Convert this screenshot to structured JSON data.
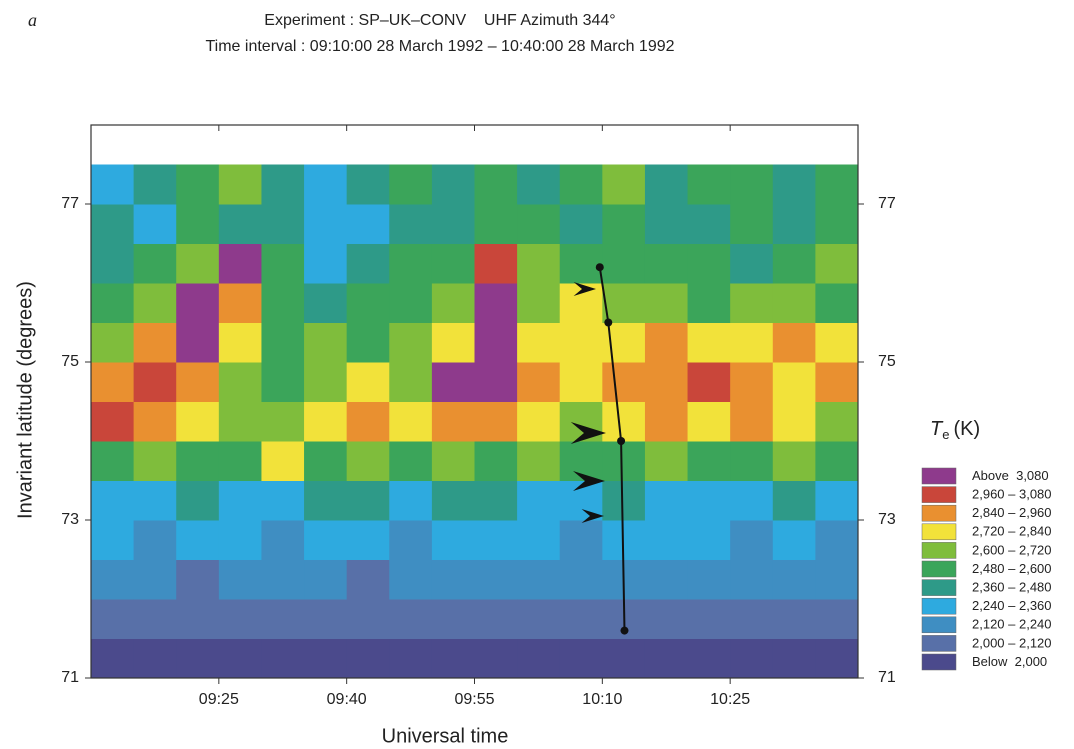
{
  "chart_data": {
    "type": "heatmap",
    "panel_label": "a",
    "title": "Experiment : SP–UK–CONV    UHF Azimuth 344°",
    "subtitle": "Time interval : 09:10:00 28 March 1992 – 10:40:00 28 March 1992",
    "x_label": "Universal time",
    "y_label": "Invariant latitude (degrees)",
    "xlim": [
      550,
      640
    ],
    "ylim": [
      71,
      78
    ],
    "xticks": [
      {
        "value": 565,
        "label": "09:25"
      },
      {
        "value": 580,
        "label": "09:40"
      },
      {
        "value": 595,
        "label": "09:55"
      },
      {
        "value": 610,
        "label": "10:10"
      },
      {
        "value": 625,
        "label": "10:25"
      }
    ],
    "yticks": [
      71,
      73,
      75,
      77
    ],
    "x": [
      552.5,
      557.5,
      562.5,
      567.5,
      572.5,
      577.5,
      582.5,
      587.5,
      592.5,
      597.5,
      602.5,
      607.5,
      612.5,
      617.5,
      622.5,
      627.5,
      632.5,
      637.5
    ],
    "y": [
      71.25,
      71.75,
      72.25,
      72.75,
      73.25,
      73.75,
      74.25,
      74.75,
      75.25,
      75.75,
      76.25,
      76.75,
      77.25
    ],
    "z": [
      [
        1940,
        1940,
        1940,
        1940,
        1940,
        1940,
        1940,
        1940,
        1940,
        1940,
        1940,
        1940,
        1940,
        1940,
        1940,
        1940,
        1940,
        1940
      ],
      [
        2060,
        2060,
        2060,
        2060,
        2060,
        2060,
        2060,
        2060,
        2060,
        2060,
        2060,
        2060,
        2060,
        2060,
        2060,
        2060,
        2060,
        2060
      ],
      [
        2180,
        2180,
        2060,
        2180,
        2180,
        2180,
        2060,
        2180,
        2180,
        2180,
        2180,
        2180,
        2180,
        2180,
        2180,
        2180,
        2180,
        2180
      ],
      [
        2300,
        2180,
        2300,
        2300,
        2180,
        2300,
        2300,
        2180,
        2300,
        2300,
        2300,
        2180,
        2300,
        2300,
        2300,
        2180,
        2300,
        2180
      ],
      [
        2300,
        2300,
        2420,
        2300,
        2300,
        2420,
        2420,
        2300,
        2420,
        2420,
        2300,
        2300,
        2420,
        2300,
        2300,
        2300,
        2420,
        2300
      ],
      [
        2540,
        2660,
        2540,
        2540,
        2780,
        2540,
        2660,
        2540,
        2660,
        2540,
        2660,
        2540,
        2540,
        2660,
        2540,
        2540,
        2660,
        2540
      ],
      [
        3020,
        2900,
        2780,
        2660,
        2660,
        2780,
        2900,
        2780,
        2900,
        2900,
        2780,
        2660,
        2780,
        2900,
        2780,
        2900,
        2780,
        2660
      ],
      [
        2900,
        3020,
        2900,
        2660,
        2540,
        2660,
        2780,
        2660,
        3140,
        3140,
        2900,
        2780,
        2900,
        2900,
        3020,
        2900,
        2780,
        2900
      ],
      [
        2660,
        2900,
        3140,
        2780,
        2540,
        2660,
        2540,
        2660,
        2780,
        3140,
        2780,
        2780,
        2780,
        2900,
        2780,
        2780,
        2900,
        2780
      ],
      [
        2540,
        2660,
        3140,
        2900,
        2540,
        2420,
        2540,
        2540,
        2660,
        3140,
        2660,
        2780,
        2660,
        2660,
        2540,
        2660,
        2660,
        2540
      ],
      [
        2420,
        2540,
        2660,
        3140,
        2540,
        2300,
        2420,
        2540,
        2540,
        3020,
        2660,
        2540,
        2540,
        2540,
        2540,
        2420,
        2540,
        2660
      ],
      [
        2420,
        2300,
        2540,
        2420,
        2420,
        2300,
        2300,
        2420,
        2420,
        2540,
        2540,
        2420,
        2540,
        2420,
        2420,
        2540,
        2420,
        2540
      ],
      [
        2300,
        2420,
        2540,
        2660,
        2420,
        2300,
        2420,
        2540,
        2420,
        2540,
        2420,
        2540,
        2660,
        2420,
        2540,
        2540,
        2420,
        2540
      ]
    ],
    "track": {
      "x": [
        609.7,
        610.7,
        612.2,
        612.6
      ],
      "y": [
        76.2,
        75.5,
        74.0,
        71.6
      ],
      "color": "#111111"
    },
    "legend": {
      "title_symbol": "T",
      "title_subscript": "e",
      "title_unit": "(K)",
      "bins": [
        2000,
        2120,
        2240,
        2360,
        2480,
        2600,
        2720,
        2840,
        2960,
        3080
      ],
      "colors": [
        "#4b4a8c",
        "#5870a8",
        "#3f8ec2",
        "#2eaadf",
        "#2e9a88",
        "#3ba55a",
        "#7fbd3c",
        "#f2e23a",
        "#e99030",
        "#c9463a",
        "#8e3a8c"
      ],
      "labels": [
        "Below  2,000",
        "2,000 – 2,120",
        "2,120 – 2,240",
        "2,240 – 2,360",
        "2,360 – 2,480",
        "2,480 – 2,600",
        "2,600 – 2,720",
        "2,720 – 2,840",
        "2,840 – 2,960",
        "2,960 – 3,080",
        "Above  3,080"
      ]
    }
  }
}
